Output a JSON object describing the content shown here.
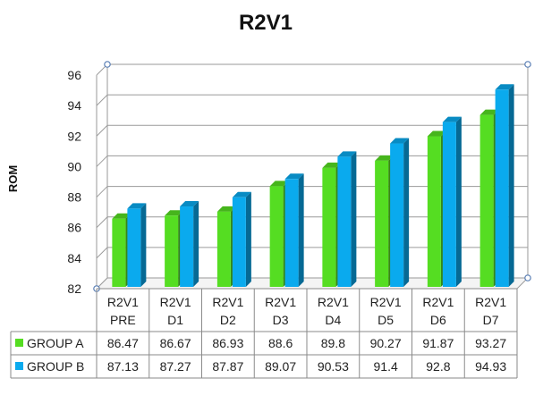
{
  "chart_data": {
    "type": "bar",
    "title": "R2V1",
    "xlabel": "",
    "ylabel": "ROM",
    "ylim": [
      82,
      96
    ],
    "yticks": [
      82,
      84,
      86,
      88,
      90,
      92,
      94,
      96
    ],
    "grid": true,
    "legend": "data-table",
    "categories": [
      [
        "R2V1",
        "PRE"
      ],
      [
        "R2V1",
        "D1"
      ],
      [
        "R2V1",
        "D2"
      ],
      [
        "R2V1",
        "D3"
      ],
      [
        "R2V1",
        "D4"
      ],
      [
        "R2V1",
        "D5"
      ],
      [
        "R2V1",
        "D6"
      ],
      [
        "R2V1",
        "D7"
      ]
    ],
    "series": [
      {
        "name": "GROUP A",
        "color": "#55dd22",
        "values": [
          86.47,
          86.67,
          86.93,
          88.6,
          89.8,
          90.27,
          91.87,
          93.27
        ],
        "labels": [
          "86.47",
          "86.67",
          "86.93",
          "88.6",
          "89.8",
          "90.27",
          "91.87",
          "93.27"
        ]
      },
      {
        "name": "GROUP B",
        "color": "#0aaaee",
        "values": [
          87.13,
          87.27,
          87.87,
          89.07,
          90.53,
          91.4,
          92.8,
          94.93
        ],
        "labels": [
          "87.13",
          "87.27",
          "87.87",
          "89.07",
          "90.53",
          "91.4",
          "92.8",
          "94.93"
        ]
      }
    ]
  }
}
